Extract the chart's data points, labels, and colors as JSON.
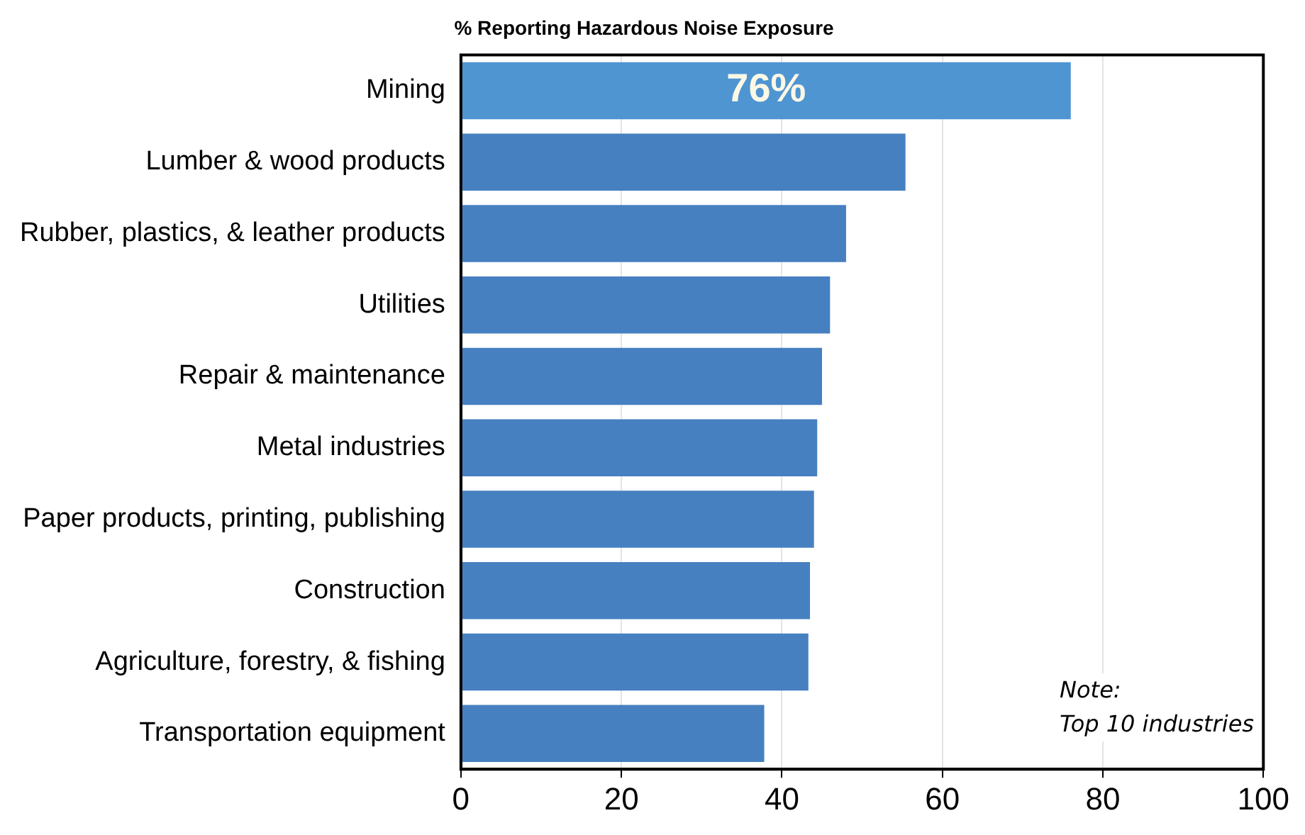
{
  "chart_data": {
    "type": "bar",
    "orientation": "horizontal",
    "title": "% Reporting Hazardous Noise Exposure",
    "categories": [
      "Mining",
      "Lumber & wood products",
      "Rubber, plastics, & leather products",
      "Utilities",
      "Repair & maintenance",
      "Metal industries",
      "Paper products, printing, publishing",
      "Construction",
      "Agriculture, forestry, & fishing",
      "Transportation equipment"
    ],
    "values": [
      76,
      55.4,
      48,
      46,
      45,
      44.4,
      44,
      43.5,
      43.3,
      37.8
    ],
    "value_labels": [
      "76%",
      null,
      null,
      null,
      null,
      null,
      null,
      null,
      null,
      null
    ],
    "colors": [
      "#4f95d2",
      "#4680c0",
      "#4680c0",
      "#4680c0",
      "#4680c0",
      "#4680c0",
      "#4680c0",
      "#4680c0",
      "#4680c0",
      "#4680c0"
    ],
    "xlim": [
      0,
      100
    ],
    "xticks": [
      0,
      20,
      40,
      60,
      80,
      100
    ],
    "grid": "x",
    "legend": false,
    "annotations": [
      "Note:\nTop 10 industries"
    ]
  }
}
